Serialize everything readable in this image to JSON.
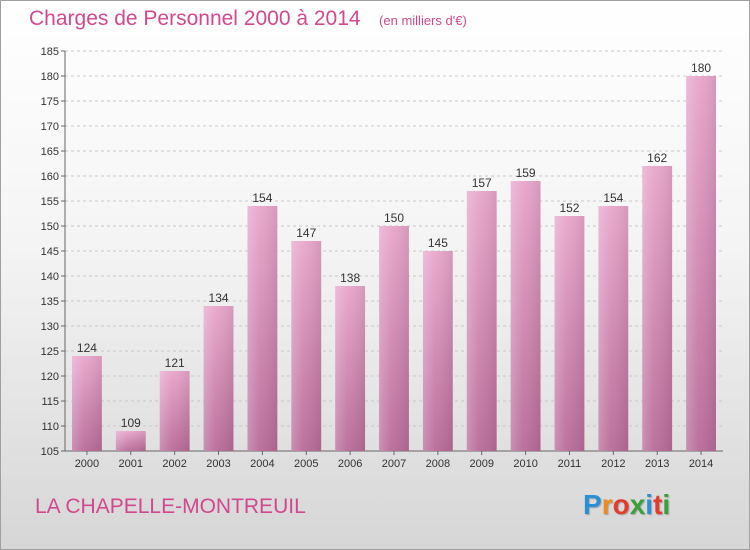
{
  "header": {
    "title": "Charges de Personnel 2000 à 2014",
    "subtitle": "(en milliers d'€)"
  },
  "footer": {
    "city": "LA CHAPELLE-MONTREUIL",
    "logo_letters": [
      "P",
      "r",
      "o",
      "x",
      "i",
      "t",
      "i"
    ],
    "logo_colors": [
      "#2b8fd6",
      "#f08a1c",
      "#e23c2c",
      "#3aa13a",
      "#2b8fd6",
      "#e23c2c",
      "#3aa13a"
    ]
  },
  "colors": {
    "bar_top": "#e8a6cb",
    "bar_bottom": "#b86b98",
    "title": "#d2488e",
    "grid": "#c8c8c8"
  },
  "chart_data": {
    "type": "bar",
    "categories": [
      "2000",
      "2001",
      "2002",
      "2003",
      "2004",
      "2005",
      "2006",
      "2007",
      "2008",
      "2009",
      "2010",
      "2011",
      "2012",
      "2013",
      "2014"
    ],
    "values": [
      124,
      109,
      121,
      134,
      154,
      147,
      138,
      150,
      145,
      157,
      159,
      152,
      154,
      162,
      180
    ],
    "title": "Charges de Personnel 2000 à 2014",
    "subtitle": "(en milliers d'€)",
    "ylim": [
      105,
      185
    ],
    "yticks": [
      105,
      110,
      115,
      120,
      125,
      130,
      135,
      140,
      145,
      150,
      155,
      160,
      165,
      170,
      175,
      180,
      185
    ],
    "grid": true,
    "data_labels": true
  }
}
